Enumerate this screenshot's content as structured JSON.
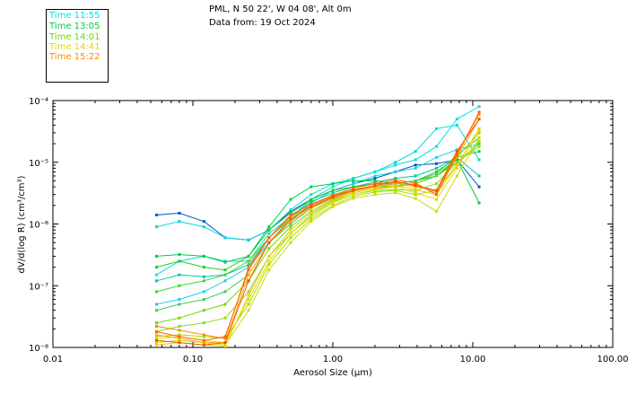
{
  "header": {
    "line1": "PML, N 50 22', W 04 08', Alt 0m",
    "line2": "Data from: 19 Oct 2024"
  },
  "legend": [
    {
      "label": "Time 11:55",
      "color": "#00e0e0"
    },
    {
      "label": "Time 13:05",
      "color": "#00cc44"
    },
    {
      "label": "Time 14:01",
      "color": "#66dd00"
    },
    {
      "label": "Time 14:41",
      "color": "#dddd00"
    },
    {
      "label": "Time 15:22",
      "color": "#ff8800"
    }
  ],
  "chart_data": {
    "type": "line",
    "xlabel": "Aerosol Size (µm)",
    "ylabel": "dV/d(log R) (cm³/cm³)",
    "x_scale": "log",
    "y_scale": "log",
    "xlim": [
      0.01,
      100
    ],
    "ylim": [
      1e-08,
      0.0001
    ],
    "x_ticks": [
      {
        "value": 0.01,
        "label": "0.01"
      },
      {
        "value": 0.1,
        "label": "0.10"
      },
      {
        "value": 1,
        "label": "1.00"
      },
      {
        "value": 10,
        "label": "10.00"
      },
      {
        "value": 100,
        "label": "100.00"
      }
    ],
    "y_ticks": [
      {
        "value": 1e-08,
        "label": "10⁻⁸"
      },
      {
        "value": 1e-07,
        "label": "10⁻⁷"
      },
      {
        "value": 1e-06,
        "label": "10⁻⁶"
      },
      {
        "value": 1e-05,
        "label": "10⁻⁵"
      },
      {
        "value": 0.0001,
        "label": "10⁻⁴"
      }
    ],
    "x": [
      0.055,
      0.08,
      0.12,
      0.17,
      0.25,
      0.35,
      0.5,
      0.7,
      1.0,
      1.4,
      2.0,
      2.8,
      3.9,
      5.5,
      7.7,
      11.1
    ],
    "series": [
      {
        "color": "#0055cc",
        "values": [
          1.4e-06,
          1.5e-06,
          1.1e-06,
          6e-07,
          5.5e-07,
          8e-07,
          1.6e-06,
          2.5e-06,
          3.5e-06,
          4.5e-06,
          5.5e-06,
          7e-06,
          9e-06,
          9.5e-06,
          1.1e-05,
          4e-06
        ]
      },
      {
        "color": "#00d8d8",
        "values": [
          9e-07,
          1.1e-06,
          9e-07,
          6e-07,
          5.5e-07,
          8e-07,
          1.7e-06,
          3e-06,
          4.5e-06,
          5.5e-06,
          7e-06,
          1e-05,
          1.5e-05,
          3.5e-05,
          4e-05,
          1.1e-05
        ]
      },
      {
        "color": "#00e0e0",
        "values": [
          1.5e-07,
          2.5e-07,
          3e-07,
          2.5e-07,
          2.5e-07,
          7e-07,
          1.3e-06,
          2.5e-06,
          4e-06,
          5.5e-06,
          7e-06,
          9e-06,
          1.1e-05,
          1.8e-05,
          5e-05,
          8e-05
        ]
      },
      {
        "color": "#22d0e0",
        "values": [
          5e-08,
          6e-08,
          8e-08,
          1.2e-07,
          2e-07,
          5e-07,
          1.1e-06,
          2.2e-06,
          3.5e-06,
          4.5e-06,
          6e-06,
          7e-06,
          8e-06,
          1.2e-05,
          1.6e-05,
          2e-05
        ]
      },
      {
        "color": "#00c8a0",
        "values": [
          1.2e-07,
          1.5e-07,
          1.4e-07,
          1.5e-07,
          2.2e-07,
          6e-07,
          1.3e-06,
          2.3e-06,
          3.2e-06,
          4e-06,
          4.8e-06,
          5.5e-06,
          6e-06,
          8e-06,
          1.2e-05,
          6e-06
        ]
      },
      {
        "color": "#00cc44",
        "values": [
          3e-07,
          3.2e-07,
          3e-07,
          2.4e-07,
          3e-07,
          9e-07,
          2.5e-06,
          4e-06,
          4.5e-06,
          5e-06,
          5e-06,
          4.5e-06,
          5e-06,
          6e-06,
          1.1e-05,
          2.2e-06
        ]
      },
      {
        "color": "#22cc22",
        "values": [
          2e-07,
          2.5e-07,
          2e-07,
          1.8e-07,
          3e-07,
          8e-07,
          1.5e-06,
          2.5e-06,
          3.5e-06,
          4e-06,
          4.5e-06,
          4.5e-06,
          5e-06,
          7e-06,
          1.2e-05,
          1.5e-05
        ]
      },
      {
        "color": "#33dd33",
        "values": [
          8e-08,
          1e-07,
          1.2e-07,
          1.5e-07,
          2.5e-07,
          6e-07,
          1.2e-06,
          2e-06,
          3e-06,
          3.5e-06,
          4e-06,
          4.2e-06,
          4.5e-06,
          6e-06,
          1e-05,
          2e-05
        ]
      },
      {
        "color": "#44cc66",
        "values": [
          4e-08,
          5e-08,
          6e-08,
          8e-08,
          1.5e-07,
          5e-07,
          1e-06,
          1.8e-06,
          2.8e-06,
          3.5e-06,
          4e-06,
          4.5e-06,
          5e-06,
          6.5e-06,
          1.3e-05,
          2.5e-05
        ]
      },
      {
        "color": "#66dd00",
        "values": [
          2.5e-08,
          3e-08,
          4e-08,
          5e-08,
          1.2e-07,
          4e-07,
          9e-07,
          1.6e-06,
          2.5e-06,
          3.2e-06,
          3.8e-06,
          4e-06,
          4.5e-06,
          6e-06,
          1.2e-05,
          3e-05
        ]
      },
      {
        "color": "#88dd22",
        "values": [
          1.8e-08,
          2.2e-08,
          2.5e-08,
          3e-08,
          8e-08,
          3e-07,
          7e-07,
          1.4e-06,
          2.3e-06,
          3e-06,
          3.5e-06,
          3.6e-06,
          3.5e-06,
          4.5e-06,
          1e-05,
          1.8e-05
        ]
      },
      {
        "color": "#aadd00",
        "values": [
          1.5e-08,
          1.6e-08,
          1.5e-08,
          1.4e-08,
          5e-08,
          2.2e-07,
          6e-07,
          1.2e-06,
          2e-06,
          2.8e-06,
          3.3e-06,
          3.5e-06,
          3e-06,
          3.5e-06,
          9e-06,
          2.2e-05
        ]
      },
      {
        "color": "#ccdd00",
        "values": [
          1.2e-08,
          1.3e-08,
          1.2e-08,
          1.1e-08,
          4e-08,
          1.8e-07,
          5e-07,
          1.1e-06,
          1.9e-06,
          2.6e-06,
          3e-06,
          3.2e-06,
          2.6e-06,
          1.6e-06,
          6e-06,
          2.5e-05
        ]
      },
      {
        "color": "#dddd00",
        "values": [
          1.4e-08,
          1.5e-08,
          1.3e-08,
          1.2e-08,
          6e-08,
          2.5e-07,
          7e-07,
          1.3e-06,
          2.2e-06,
          3e-06,
          3.6e-06,
          4e-06,
          3.2e-06,
          2.5e-06,
          8e-06,
          3.2e-05
        ]
      },
      {
        "color": "#eecc00",
        "values": [
          1.1e-08,
          1.2e-08,
          1.1e-08,
          1.05e-08,
          7e-08,
          3e-07,
          8e-07,
          1.5e-06,
          2.4e-06,
          3.2e-06,
          3.8e-06,
          4.2e-06,
          3.6e-06,
          3e-06,
          9e-06,
          3.5e-05
        ]
      },
      {
        "color": "#ffaa00",
        "values": [
          1.6e-08,
          1.4e-08,
          1.2e-08,
          1.2e-08,
          1.5e-07,
          5e-07,
          1.1e-06,
          1.8e-06,
          2.6e-06,
          3.4e-06,
          4e-06,
          4.6e-06,
          4e-06,
          3.5e-06,
          1.2e-05,
          5e-05
        ]
      },
      {
        "color": "#ff8800",
        "values": [
          2.2e-08,
          1.9e-08,
          1.6e-08,
          1.4e-08,
          2e-07,
          6e-07,
          1.3e-06,
          2e-06,
          2.8e-06,
          3.6e-06,
          4.2e-06,
          4.8e-06,
          4.3e-06,
          3.3e-06,
          1.4e-05,
          6e-05
        ]
      },
      {
        "color": "#ff6600",
        "values": [
          1.8e-08,
          1.5e-08,
          1.3e-08,
          1.5e-08,
          1.8e-07,
          6e-07,
          1.4e-06,
          2.1e-06,
          2.9e-06,
          3.8e-06,
          4.5e-06,
          5.2e-06,
          4.6e-06,
          3e-06,
          1.3e-05,
          6.5e-05
        ]
      },
      {
        "color": "#ee5500",
        "values": [
          1.3e-08,
          1.2e-08,
          1.1e-08,
          1.2e-08,
          1.2e-07,
          5e-07,
          1.2e-06,
          1.9e-06,
          2.7e-06,
          3.5e-06,
          4.2e-06,
          4.9e-06,
          4.2e-06,
          3.5e-06,
          1.5e-05,
          5e-05
        ]
      }
    ]
  }
}
